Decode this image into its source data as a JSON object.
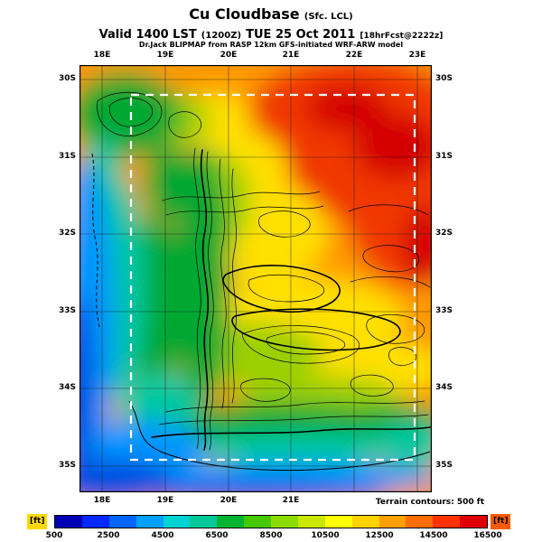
{
  "title": {
    "product": "Cu Cloudbase",
    "product_qualifier": "(Sfc. LCL)",
    "valid_prefix": "Valid 1400 LST",
    "valid_zulu": "(1200Z)",
    "valid_date": "TUE 25 Oct 2011",
    "forecast_tag": "[18hrFcst@2222z]",
    "model_line": "Dr.Jack BLIPMAP from RASP 12km GFS-initiated WRF-ARW model"
  },
  "map": {
    "x_ticks_top": [
      "18E",
      "19E",
      "20E",
      "21E",
      "22E",
      "23E"
    ],
    "x_ticks_bottom": [
      "18E",
      "19E",
      "20E",
      "21E"
    ],
    "y_ticks_left": [
      "30S",
      "31S",
      "32S",
      "33S",
      "34S",
      "35S"
    ],
    "y_ticks_right": [
      "30S",
      "31S",
      "32S",
      "33S",
      "34S",
      "35S"
    ],
    "terrain_note": "Terrain contours: 500 ft"
  },
  "colorbar": {
    "unit_left": "[ft]",
    "unit_right": "[ft]",
    "unit_left_bg": "#FFD900",
    "unit_right_bg": "#FF5A00",
    "min": 500,
    "max": 16500,
    "tick_labels": [
      "500",
      "2500",
      "4500",
      "6500",
      "8500",
      "10500",
      "12500",
      "14500",
      "16500"
    ],
    "tick_values": [
      500,
      2500,
      4500,
      6500,
      8500,
      10500,
      12500,
      14500,
      16500
    ],
    "segment_colors": [
      "#0000B4",
      "#0028FF",
      "#0064FF",
      "#00A0FF",
      "#00D2D2",
      "#00C896",
      "#00B432",
      "#46C800",
      "#8CDC00",
      "#C8E600",
      "#FFFF00",
      "#FFD200",
      "#FFA000",
      "#FF6E00",
      "#FF3200",
      "#E10000"
    ]
  },
  "chart_data": {
    "type": "heatmap",
    "title": "Cu Cloudbase (Sfc. LCL)",
    "valid": "1400 LST (1200Z) TUE 25 Oct 2011, 18hr forecast @2222z",
    "model": "Dr.Jack BLIPMAP from RASP 12km GFS-initiated WRF-ARW model",
    "units": "ft",
    "x_label": "Longitude",
    "y_label": "Latitude",
    "x": [
      "18E",
      "19E",
      "20E",
      "21E",
      "22E",
      "23E"
    ],
    "y": [
      "30S",
      "31S",
      "32S",
      "33S",
      "34S",
      "35S"
    ],
    "values_ft": [
      [
        7500,
        9500,
        12500,
        13500,
        15500,
        14500
      ],
      [
        3500,
        6500,
        9500,
        12500,
        14500,
        15500
      ],
      [
        1500,
        5500,
        8500,
        11500,
        12500,
        13500
      ],
      [
        1000,
        4500,
        8500,
        10500,
        11500,
        12000
      ],
      [
        1000,
        3000,
        5500,
        4500,
        3500,
        2500
      ],
      [
        1500,
        1500,
        2000,
        2500,
        2500,
        3000
      ]
    ],
    "colorscale_range_ft": [
      500,
      16500
    ],
    "colorscale_ticks_ft": [
      500,
      2500,
      4500,
      6500,
      8500,
      10500,
      12500,
      14500,
      16500
    ],
    "terrain_contour_interval_ft": 500,
    "overlays": [
      "black terrain contour lines",
      "white dashed inner model domain box",
      "lat-lon grid every 1 degree"
    ],
    "legend_position": "bottom horizontal colorbar"
  }
}
